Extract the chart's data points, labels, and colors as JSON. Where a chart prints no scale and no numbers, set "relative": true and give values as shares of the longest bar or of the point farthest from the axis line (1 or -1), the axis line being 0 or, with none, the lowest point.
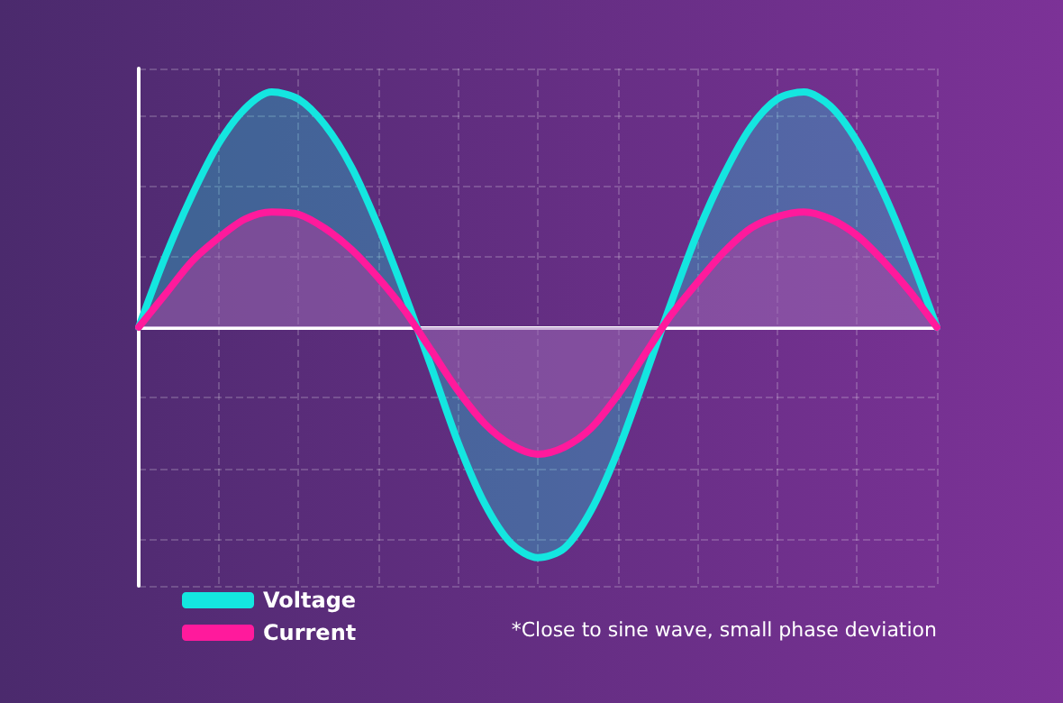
{
  "chart_data": {
    "type": "area",
    "relative": true,
    "grid": true,
    "legend": "bottom left",
    "marker": "none",
    "line_style": "solid",
    "categories": [
      null,
      null,
      null,
      null,
      null,
      null,
      null,
      null,
      null,
      null,
      null,
      null,
      null,
      null,
      null,
      null,
      null,
      null,
      null,
      null,
      null,
      null,
      null,
      null,
      null,
      null,
      null,
      null,
      null,
      null,
      null
    ],
    "series": [
      {
        "name": "Voltage",
        "color": "#14e6e0",
        "values": [
          0,
          0.3,
          0.56,
          0.78,
          0.93,
          1,
          0.97,
          0.86,
          0.68,
          0.43,
          0.14,
          -0.17,
          -0.49,
          -0.75,
          -0.92,
          -0.98,
          -0.94,
          -0.78,
          -0.53,
          -0.22,
          0.1,
          0.4,
          0.65,
          0.85,
          0.97,
          1,
          0.94,
          0.79,
          0.57,
          0.3,
          0
        ]
      },
      {
        "name": "Current",
        "color": "#ff1a9c",
        "values": [
          0,
          0.14,
          0.28,
          0.38,
          0.46,
          0.49,
          0.48,
          0.42,
          0.33,
          0.21,
          0.07,
          -0.1,
          -0.27,
          -0.41,
          -0.5,
          -0.54,
          -0.51,
          -0.43,
          -0.29,
          -0.12,
          0.05,
          0.19,
          0.32,
          0.42,
          0.47,
          0.49,
          0.46,
          0.39,
          0.28,
          0.15,
          0
        ]
      }
    ],
    "annotations": [
      "*Close to sine wave, small phase deviation"
    ]
  }
}
